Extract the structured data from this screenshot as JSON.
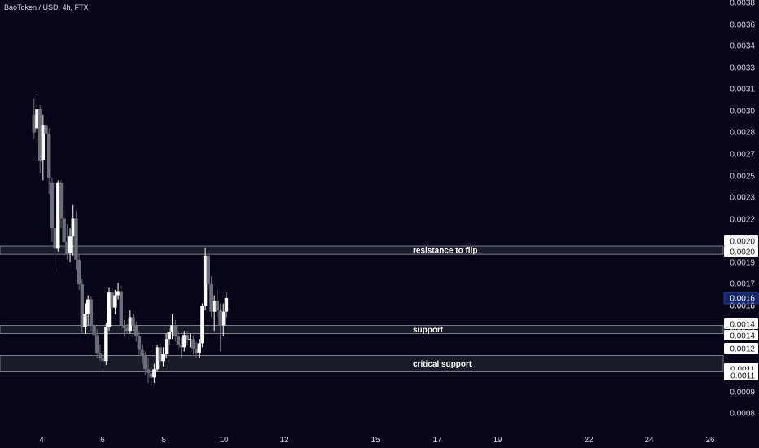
{
  "title": "BaoToken / USD, 4h, FTX",
  "chart_data": {
    "type": "candlestick",
    "title": "BaoToken / USD, 4h, FTX",
    "ylim": [
      0.0007,
      0.0038
    ],
    "y_ticks": [
      "0.0008",
      "0.0009",
      "0.0011",
      "0.0012",
      "0.0014",
      "0.0015",
      "0.0016",
      "0.0017",
      "0.0019",
      "0.0020",
      "0.0022",
      "0.0023",
      "0.0025",
      "0.0027",
      "0.0028",
      "0.0030",
      "0.0031",
      "0.0033",
      "0.0034",
      "0.0036",
      "0.0038"
    ],
    "x_ticks": [
      {
        "label": "4",
        "x": 4
      },
      {
        "label": "6",
        "x": 6
      },
      {
        "label": "8",
        "x": 8
      },
      {
        "label": "10",
        "x": 10
      },
      {
        "label": "12",
        "x": 12
      },
      {
        "label": "15",
        "x": 15
      },
      {
        "label": "17",
        "x": 17
      },
      {
        "label": "19",
        "x": 19
      },
      {
        "label": "22",
        "x": 22
      },
      {
        "label": "24",
        "x": 24
      },
      {
        "label": "26",
        "x": 26
      }
    ],
    "current_price": "0.0016",
    "zone_price_tags": [
      "0.0020",
      "0.0020",
      "0.0014",
      "0.0014",
      "0.0012",
      "0.0011",
      "0.0011"
    ],
    "zones": [
      {
        "label": "resistance to flip",
        "low": 0.00196,
        "high": 0.00202
      },
      {
        "label": "support",
        "low": 0.00138,
        "high": 0.00144
      },
      {
        "label": "critical support",
        "low": 0.0011,
        "high": 0.00122
      }
    ],
    "series": [
      {
        "values": [
          [
            3.75,
            0.00298,
            0.0031,
            0.0028,
            0.00285
          ],
          [
            3.85,
            0.00288,
            0.00311,
            0.00264,
            0.00302
          ],
          [
            3.95,
            0.00302,
            0.00305,
            0.00255,
            0.00264
          ],
          [
            4.05,
            0.00265,
            0.00298,
            0.0025,
            0.0029
          ],
          [
            4.15,
            0.0029,
            0.00295,
            0.00255,
            0.00284
          ],
          [
            4.25,
            0.00284,
            0.00288,
            0.0024,
            0.00252
          ],
          [
            4.35,
            0.00248,
            0.00252,
            0.00205,
            0.00215
          ],
          [
            4.45,
            0.00215,
            0.0022,
            0.00185,
            0.002
          ],
          [
            4.55,
            0.002,
            0.0025,
            0.00198,
            0.00248
          ],
          [
            4.65,
            0.00248,
            0.0025,
            0.00215,
            0.00222
          ],
          [
            4.75,
            0.00222,
            0.00232,
            0.00195,
            0.00205
          ],
          [
            4.85,
            0.00205,
            0.00218,
            0.00192,
            0.00196
          ],
          [
            4.95,
            0.00197,
            0.00215,
            0.0019,
            0.00209
          ],
          [
            5.05,
            0.00209,
            0.00232,
            0.00195,
            0.00222
          ],
          [
            5.15,
            0.00222,
            0.00228,
            0.00185,
            0.00192
          ],
          [
            5.25,
            0.00192,
            0.00196,
            0.0017,
            0.00174
          ],
          [
            5.35,
            0.00174,
            0.00178,
            0.00138,
            0.00143
          ],
          [
            5.45,
            0.00143,
            0.0016,
            0.00138,
            0.00152
          ],
          [
            5.55,
            0.00152,
            0.00166,
            0.00144,
            0.00163
          ],
          [
            5.65,
            0.00163,
            0.00165,
            0.0014,
            0.00144
          ],
          [
            5.75,
            0.00144,
            0.0015,
            0.00126,
            0.00137
          ],
          [
            5.85,
            0.00137,
            0.00141,
            0.0012,
            0.00124
          ],
          [
            5.95,
            0.00124,
            0.0013,
            0.00118,
            0.0012
          ],
          [
            6.05,
            0.0012,
            0.00125,
            0.00114,
            0.00118
          ],
          [
            6.15,
            0.00118,
            0.00146,
            0.00115,
            0.00143
          ],
          [
            6.25,
            0.00143,
            0.00172,
            0.0014,
            0.00168
          ],
          [
            6.35,
            0.00168,
            0.0017,
            0.00155,
            0.00157
          ],
          [
            6.45,
            0.00157,
            0.0017,
            0.00152,
            0.00166
          ],
          [
            6.55,
            0.00166,
            0.00175,
            0.00163,
            0.00169
          ],
          [
            6.65,
            0.00169,
            0.00173,
            0.00141,
            0.00144
          ],
          [
            6.75,
            0.00144,
            0.00148,
            0.00136,
            0.00142
          ],
          [
            6.85,
            0.00142,
            0.00145,
            0.00138,
            0.0014
          ],
          [
            6.95,
            0.0014,
            0.00155,
            0.00138,
            0.0015
          ],
          [
            7.05,
            0.0015,
            0.00152,
            0.0014,
            0.00144
          ],
          [
            7.15,
            0.00144,
            0.00147,
            0.00132,
            0.00136
          ],
          [
            7.25,
            0.00136,
            0.0014,
            0.00122,
            0.00126
          ],
          [
            7.35,
            0.00126,
            0.0013,
            0.00116,
            0.00122
          ],
          [
            7.45,
            0.00122,
            0.00125,
            0.00108,
            0.00112
          ],
          [
            7.55,
            0.00112,
            0.0012,
            0.00102,
            0.00109
          ],
          [
            7.65,
            0.00109,
            0.00114,
            0.001,
            0.00106
          ],
          [
            7.75,
            0.00106,
            0.00116,
            0.00102,
            0.00112
          ],
          [
            7.85,
            0.00112,
            0.0013,
            0.0011,
            0.00128
          ],
          [
            7.95,
            0.00128,
            0.00131,
            0.00115,
            0.00118
          ],
          [
            8.05,
            0.00118,
            0.00128,
            0.00114,
            0.00123
          ],
          [
            8.15,
            0.00123,
            0.00138,
            0.0012,
            0.00134
          ],
          [
            8.25,
            0.00134,
            0.00142,
            0.0013,
            0.00139
          ],
          [
            8.35,
            0.00139,
            0.00152,
            0.00134,
            0.00144
          ],
          [
            8.45,
            0.00144,
            0.00148,
            0.00132,
            0.00136
          ],
          [
            8.55,
            0.00136,
            0.0014,
            0.00126,
            0.0013
          ],
          [
            8.65,
            0.0013,
            0.00135,
            0.0012,
            0.00128
          ],
          [
            8.75,
            0.00128,
            0.0014,
            0.00125,
            0.00137
          ],
          [
            8.85,
            0.00137,
            0.0014,
            0.0013,
            0.00133
          ],
          [
            8.95,
            0.00133,
            0.00138,
            0.00128,
            0.00134
          ],
          [
            9.05,
            0.00134,
            0.00137,
            0.00123,
            0.00127
          ],
          [
            9.15,
            0.00127,
            0.00132,
            0.0012,
            0.00124
          ],
          [
            9.25,
            0.00124,
            0.00134,
            0.0012,
            0.00131
          ],
          [
            9.35,
            0.00131,
            0.0016,
            0.00128,
            0.00158
          ],
          [
            9.45,
            0.00158,
            0.00201,
            0.00155,
            0.00195
          ],
          [
            9.55,
            0.00195,
            0.00198,
            0.0017,
            0.00174
          ],
          [
            9.65,
            0.00174,
            0.0018,
            0.0015,
            0.00154
          ],
          [
            9.75,
            0.00154,
            0.00166,
            0.0014,
            0.00162
          ],
          [
            9.85,
            0.00162,
            0.0017,
            0.0015,
            0.00155
          ],
          [
            9.95,
            0.00155,
            0.0016,
            0.00125,
            0.00144
          ],
          [
            10.05,
            0.00144,
            0.0016,
            0.00136,
            0.00154
          ],
          [
            10.15,
            0.00154,
            0.00168,
            0.0015,
            0.00164
          ]
        ]
      }
    ]
  }
}
